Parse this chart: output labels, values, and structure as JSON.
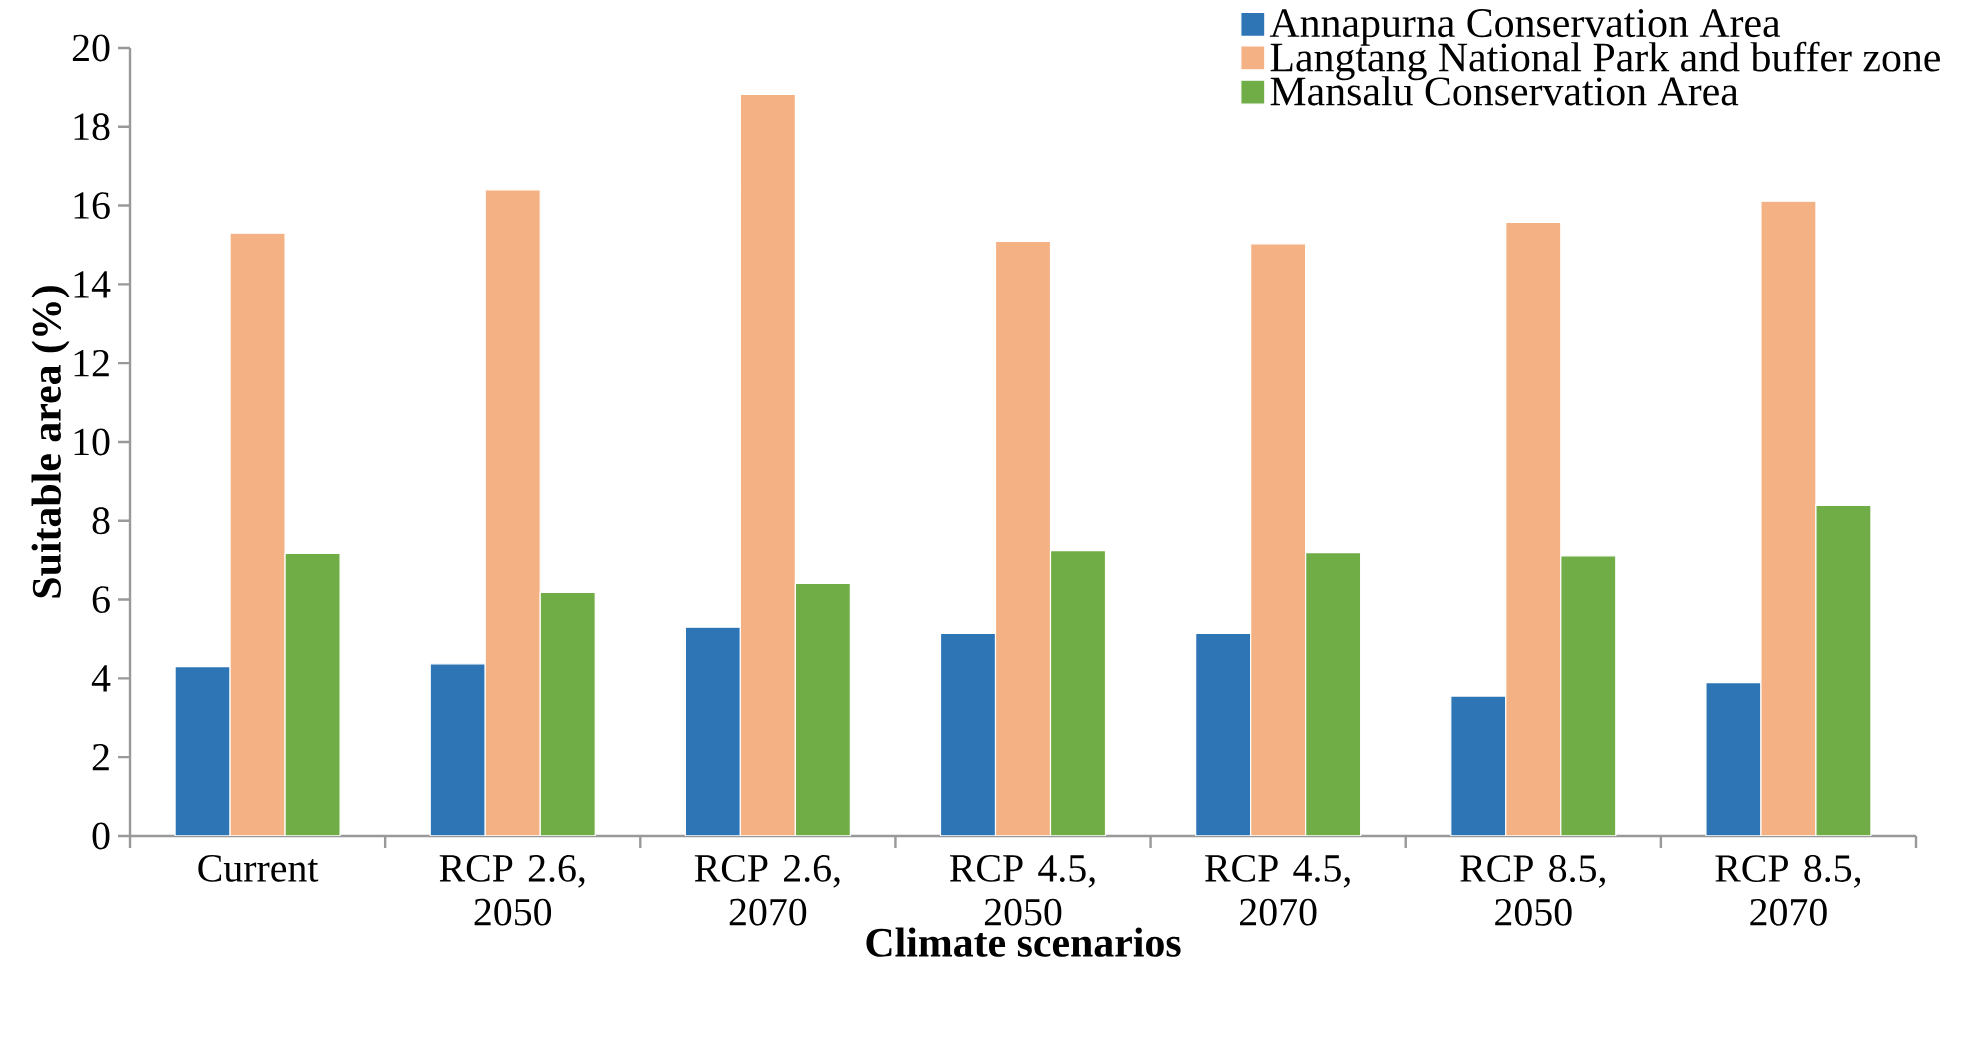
{
  "chart_data": {
    "type": "bar",
    "xlabel": "Climate scenarios",
    "ylabel": "Suitable area (%)",
    "categories": [
      "Current",
      "RCP 2.6, 2050",
      "RCP 2.6, 2070",
      "RCP 4.5, 2050",
      "RCP 4.5, 2070",
      "RCP 8.5, 2050",
      "RCP 8.5, 2070"
    ],
    "series": [
      {
        "name": "Annapurna Conservation Area",
        "color": "#2e75b6",
        "values": [
          4.3,
          4.37,
          5.3,
          5.14,
          5.14,
          3.55,
          3.89
        ]
      },
      {
        "name": "Langtang National Park and buffer zone",
        "color": "#f4b183",
        "values": [
          15.3,
          16.4,
          18.82,
          15.09,
          15.03,
          15.57,
          16.11
        ]
      },
      {
        "name": "Mansalu Conservation Area",
        "color": "#70ad47",
        "values": [
          7.17,
          6.18,
          6.41,
          7.24,
          7.19,
          7.11,
          8.39
        ]
      }
    ],
    "ylim": [
      0,
      20
    ],
    "yticks": [
      0,
      2,
      4,
      6,
      8,
      10,
      12,
      14,
      16,
      18,
      20
    ],
    "legend": "top right"
  }
}
